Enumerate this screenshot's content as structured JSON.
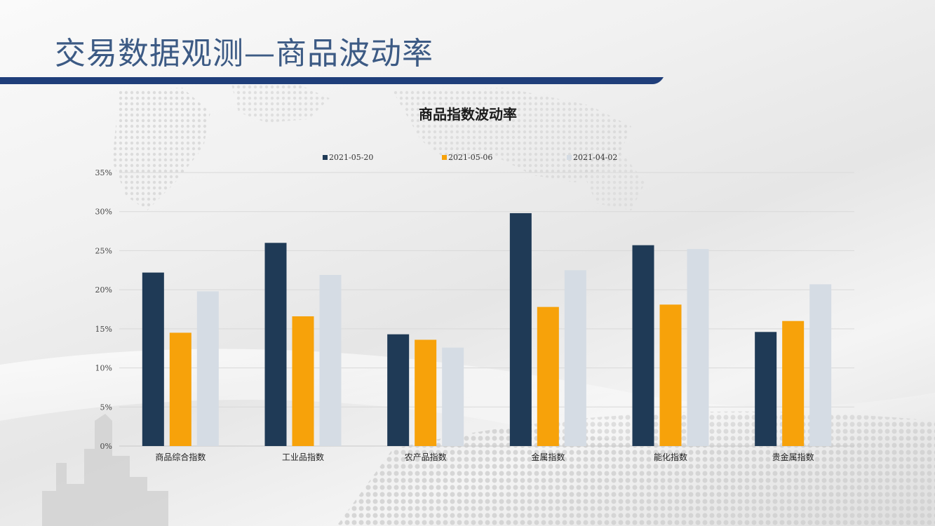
{
  "slide": {
    "title": "交易数据观测—商品波动率"
  },
  "colors": {
    "title_text": "#3c5a84",
    "title_bar": "#1f3e7a",
    "grid": "#d9d9d9"
  },
  "chart_data": {
    "type": "bar",
    "title": "商品指数波动率",
    "xlabel": "",
    "ylabel": "",
    "ylim": [
      0,
      35
    ],
    "y_ticks": [
      "0%",
      "5%",
      "10%",
      "15%",
      "20%",
      "25%",
      "30%",
      "35%"
    ],
    "y_tick_values": [
      0,
      5,
      10,
      15,
      20,
      25,
      30,
      35
    ],
    "grid": true,
    "legend_position": "top",
    "categories": [
      "商品综合指数",
      "工业品指数",
      "农产品指数",
      "金属指数",
      "能化指数",
      "贵金属指数"
    ],
    "series": [
      {
        "name": "2021-05-20",
        "color": "#1f3a56",
        "values": [
          22.2,
          26.0,
          14.3,
          29.8,
          25.7,
          14.6
        ]
      },
      {
        "name": "2021-05-06",
        "color": "#f7a20a",
        "values": [
          14.5,
          16.6,
          13.6,
          17.8,
          18.1,
          16.0
        ]
      },
      {
        "name": "2021-04-02",
        "color": "#d5dce4",
        "values": [
          19.8,
          21.9,
          12.6,
          22.5,
          25.2,
          20.7
        ]
      }
    ]
  }
}
